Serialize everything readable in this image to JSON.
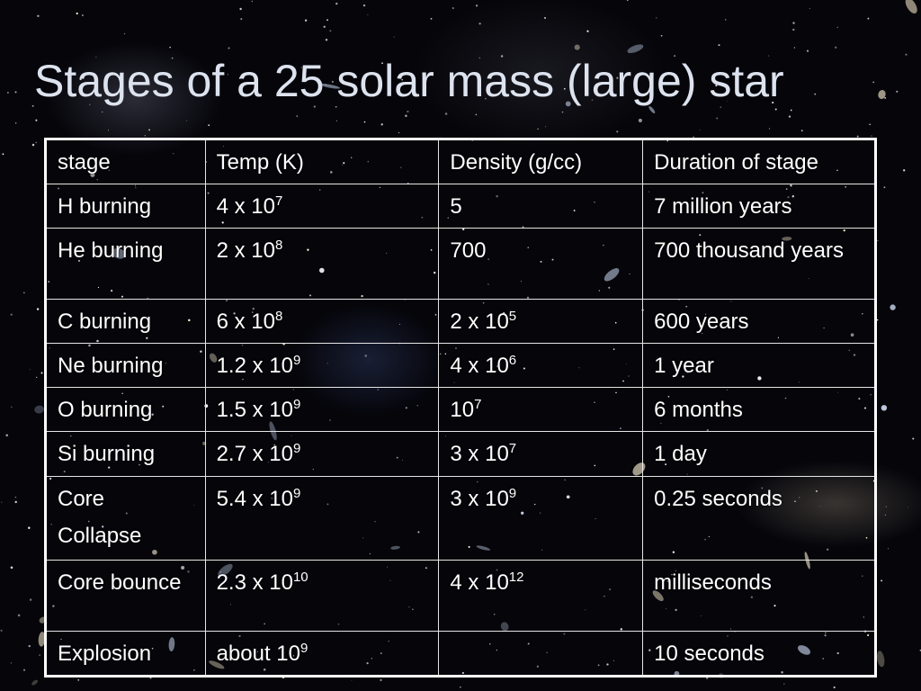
{
  "slide": {
    "title": "Stages of a 25 solar mass (large) star"
  },
  "table": {
    "headers": [
      "stage",
      "Temp (K)",
      "Density (g/cc)",
      "Duration of stage"
    ],
    "rows": [
      {
        "stage": "H burning",
        "temp": {
          "base": "4 x 10",
          "exp": "7"
        },
        "density": {
          "base": "5",
          "exp": ""
        },
        "duration": "7 million years"
      },
      {
        "stage": "He burning",
        "temp": {
          "base": "2 x 10",
          "exp": "8"
        },
        "density": {
          "base": "700",
          "exp": ""
        },
        "duration": "700 thousand years"
      },
      {
        "stage": "C burning",
        "temp": {
          "base": "6 x 10",
          "exp": "8"
        },
        "density": {
          "base": "2 x 10",
          "exp": "5"
        },
        "duration": "600 years"
      },
      {
        "stage": "Ne burning",
        "temp": {
          "base": "1.2 x 10",
          "exp": "9"
        },
        "density": {
          "base": "4 x 10",
          "exp": "6"
        },
        "duration": "1 year"
      },
      {
        "stage": "O burning",
        "temp": {
          "base": "1.5 x 10",
          "exp": "9"
        },
        "density": {
          "base": "10",
          "exp": "7"
        },
        "duration": "6 months"
      },
      {
        "stage": "Si burning",
        "temp": {
          "base": "2.7 x 10",
          "exp": "9"
        },
        "density": {
          "base": "3 x 10",
          "exp": "7"
        },
        "duration": "1 day"
      },
      {
        "stage": "Core Collapse",
        "temp": {
          "base": "5.4 x 10",
          "exp": "9"
        },
        "density": {
          "base": "3 x 10",
          "exp": "9"
        },
        "duration": "0.25 seconds"
      },
      {
        "stage": "Core bounce",
        "temp": {
          "base": "2.3 x 10",
          "exp": "10"
        },
        "density": {
          "base": "4 x 10",
          "exp": "12"
        },
        "duration": "milliseconds"
      },
      {
        "stage": "Explosion",
        "temp": {
          "base": "about 10",
          "exp": "9"
        },
        "density": {
          "base": "",
          "exp": ""
        },
        "duration": "10 seconds"
      }
    ]
  }
}
